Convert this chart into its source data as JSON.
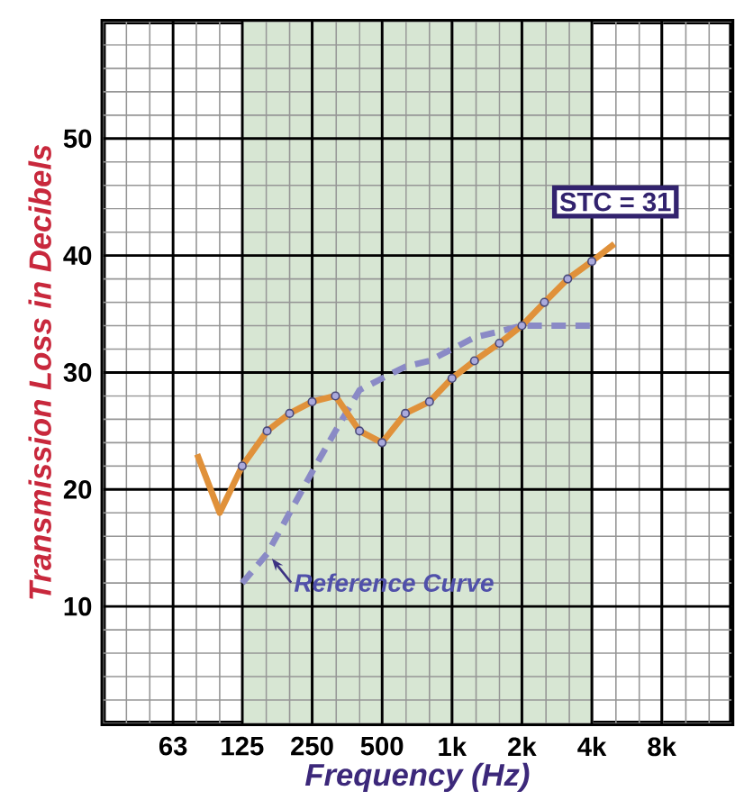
{
  "chart_data": {
    "type": "line",
    "xlabel": "Frequency (Hz)",
    "ylabel": "Transmission Loss in Decibels",
    "log": "x",
    "grid": true,
    "xlim": [
      31.5,
      16000
    ],
    "ylim": [
      0,
      60
    ],
    "xticks": [
      63,
      125,
      250,
      500,
      {
        "value": 1000,
        "label": "1k"
      },
      {
        "value": 2000,
        "label": "2k"
      },
      {
        "value": 4000,
        "label": "4k"
      },
      {
        "value": 8000,
        "label": "8k"
      }
    ],
    "yticks": [
      10,
      20,
      30,
      40,
      50
    ],
    "bands": [
      {
        "axis": "x",
        "from": 125,
        "to": 4000,
        "color": "#d7e6d3"
      }
    ],
    "series": [
      {
        "color": "#8a8ac6",
        "line_style": "dashed",
        "marker": "none",
        "x": [
          125,
          160,
          200,
          250,
          315,
          400,
          500,
          630,
          800,
          1000,
          1250,
          1600,
          2000,
          2500,
          3150,
          4000
        ],
        "values": [
          12,
          14.5,
          18,
          21.5,
          25,
          28.5,
          29.5,
          30.5,
          31,
          32,
          33,
          33.5,
          34,
          34,
          34,
          34
        ]
      },
      {
        "color": "#e0913a",
        "line_style": "solid",
        "marker": "none",
        "x": [
          80,
          100,
          125,
          160,
          200,
          250,
          315,
          400,
          500,
          630,
          800,
          1000,
          1250,
          1600,
          2000,
          2500,
          3150,
          4000,
          5000
        ],
        "values": [
          23,
          18,
          22,
          25,
          26.5,
          27.5,
          28,
          25,
          24,
          26.5,
          27.5,
          29.5,
          31,
          32.5,
          34,
          36,
          38,
          39.5,
          41
        ]
      },
      {
        "type": "scatter",
        "color": "#4a4a7a",
        "marker": "circle",
        "x": [
          125,
          160,
          200,
          250,
          315,
          400,
          500,
          630,
          800,
          1000,
          1250,
          1600,
          2000,
          2500,
          3150,
          4000
        ],
        "values": [
          22,
          25,
          26.5,
          27.5,
          28,
          25,
          24,
          26.5,
          27.5,
          29.5,
          31,
          32.5,
          34,
          36,
          38,
          39.5
        ]
      }
    ],
    "annotations": [
      "STC = 31",
      {
        "text": "Reference Curve",
        "x": 160,
        "y": 14.5
      }
    ]
  }
}
